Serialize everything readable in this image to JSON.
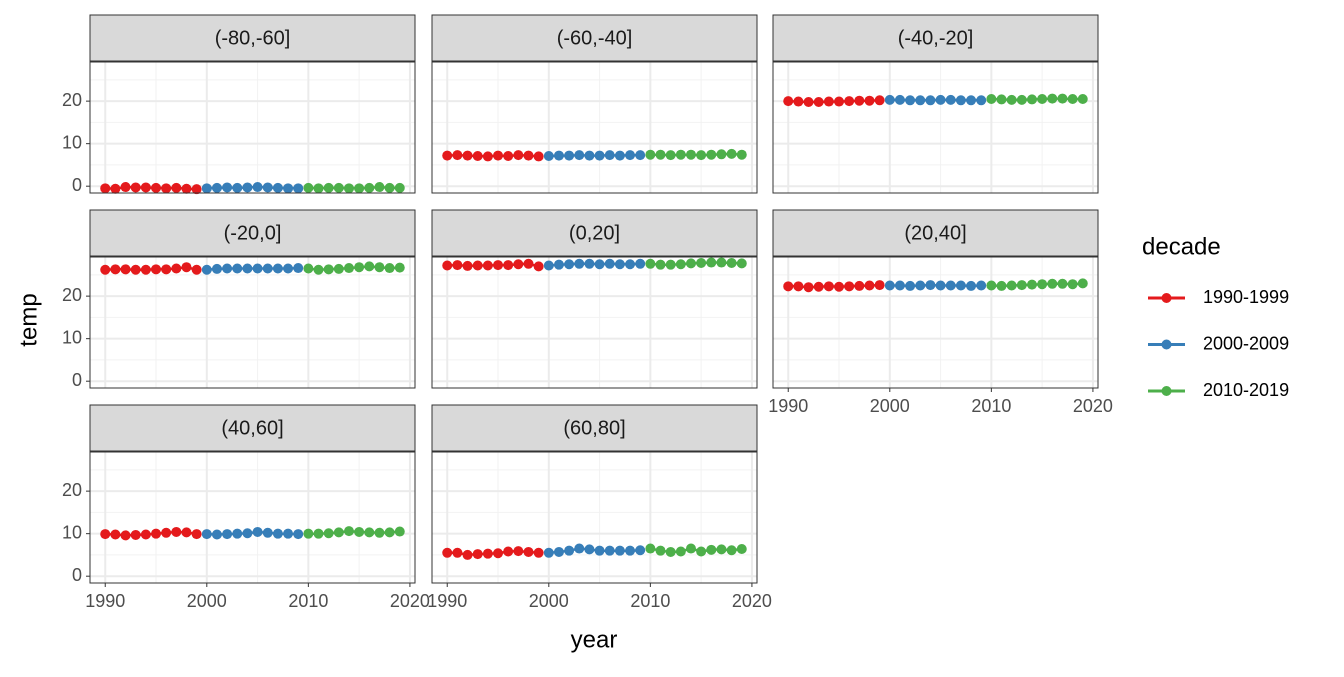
{
  "chart_data": {
    "type": "line",
    "x_label": "year",
    "y_label": "temp",
    "legend_title": "decade",
    "xlim": [
      1988.5,
      2020.5
    ],
    "ylim": [
      -1.6,
      29.2
    ],
    "xticks": [
      1990,
      2000,
      2010,
      2020
    ],
    "yticks": [
      0,
      10,
      20
    ],
    "x_minor_grid": [
      1995,
      2005,
      2015
    ],
    "y_minor_grid": [
      5,
      15,
      25
    ],
    "grid": true,
    "legend": "right",
    "series": [
      {
        "name": "1990-1999",
        "color": "#e41a1c",
        "x": [
          1990,
          1991,
          1992,
          1993,
          1994,
          1995,
          1996,
          1997,
          1998,
          1999
        ]
      },
      {
        "name": "2000-2009",
        "color": "#377eb8",
        "x": [
          2000,
          2001,
          2002,
          2003,
          2004,
          2005,
          2006,
          2007,
          2008,
          2009
        ]
      },
      {
        "name": "2010-2019",
        "color": "#4daf4a",
        "x": [
          2010,
          2011,
          2012,
          2013,
          2014,
          2015,
          2016,
          2017,
          2018,
          2019
        ]
      }
    ],
    "facets": [
      {
        "title": "(-80,-60]",
        "values": [
          [
            -0.5,
            -0.6,
            -0.2,
            -0.3,
            -0.3,
            -0.4,
            -0.5,
            -0.4,
            -0.6,
            -0.7
          ],
          [
            -0.5,
            -0.4,
            -0.3,
            -0.4,
            -0.3,
            -0.2,
            -0.3,
            -0.4,
            -0.5,
            -0.5
          ],
          [
            -0.4,
            -0.5,
            -0.4,
            -0.4,
            -0.5,
            -0.5,
            -0.4,
            -0.2,
            -0.4,
            -0.4
          ]
        ]
      },
      {
        "title": "(-60,-40]",
        "values": [
          [
            7.2,
            7.3,
            7.2,
            7.1,
            7.0,
            7.2,
            7.1,
            7.3,
            7.2,
            7.0
          ],
          [
            7.1,
            7.2,
            7.2,
            7.3,
            7.2,
            7.2,
            7.3,
            7.2,
            7.3,
            7.3
          ],
          [
            7.4,
            7.4,
            7.3,
            7.4,
            7.4,
            7.3,
            7.4,
            7.5,
            7.6,
            7.4
          ]
        ]
      },
      {
        "title": "(-40,-20]",
        "values": [
          [
            20.0,
            19.9,
            19.8,
            19.8,
            19.9,
            19.9,
            20.0,
            20.1,
            20.1,
            20.2
          ],
          [
            20.3,
            20.3,
            20.2,
            20.2,
            20.2,
            20.3,
            20.3,
            20.2,
            20.2,
            20.2
          ],
          [
            20.5,
            20.4,
            20.3,
            20.3,
            20.4,
            20.5,
            20.6,
            20.6,
            20.5,
            20.5
          ]
        ]
      },
      {
        "title": "(-20,0]",
        "values": [
          [
            26.2,
            26.3,
            26.3,
            26.2,
            26.2,
            26.3,
            26.3,
            26.5,
            26.8,
            26.2
          ],
          [
            26.2,
            26.4,
            26.5,
            26.5,
            26.5,
            26.5,
            26.5,
            26.5,
            26.5,
            26.6
          ],
          [
            26.5,
            26.2,
            26.3,
            26.4,
            26.6,
            26.8,
            27.0,
            26.8,
            26.6,
            26.7
          ]
        ]
      },
      {
        "title": "(0,20]",
        "values": [
          [
            27.2,
            27.3,
            27.1,
            27.2,
            27.2,
            27.3,
            27.3,
            27.5,
            27.6,
            27.0
          ],
          [
            27.2,
            27.4,
            27.5,
            27.6,
            27.6,
            27.5,
            27.6,
            27.5,
            27.5,
            27.6
          ],
          [
            27.6,
            27.4,
            27.4,
            27.5,
            27.7,
            27.8,
            27.9,
            27.9,
            27.8,
            27.7
          ]
        ]
      },
      {
        "title": "(20,40]",
        "values": [
          [
            22.3,
            22.3,
            22.1,
            22.2,
            22.3,
            22.2,
            22.3,
            22.4,
            22.5,
            22.6
          ],
          [
            22.5,
            22.5,
            22.4,
            22.5,
            22.6,
            22.5,
            22.5,
            22.5,
            22.4,
            22.5
          ],
          [
            22.5,
            22.4,
            22.5,
            22.6,
            22.7,
            22.8,
            22.9,
            22.9,
            22.8,
            23.0
          ]
        ]
      },
      {
        "title": "(40,60]",
        "values": [
          [
            9.9,
            9.8,
            9.6,
            9.7,
            9.8,
            10.0,
            10.2,
            10.4,
            10.3,
            9.9
          ],
          [
            9.9,
            9.8,
            9.9,
            10.0,
            10.1,
            10.4,
            10.2,
            10.0,
            10.0,
            9.9
          ],
          [
            10.0,
            10.0,
            10.1,
            10.3,
            10.6,
            10.4,
            10.3,
            10.2,
            10.3,
            10.5
          ]
        ]
      },
      {
        "title": "(60,80]",
        "values": [
          [
            5.5,
            5.5,
            5.0,
            5.2,
            5.3,
            5.4,
            5.8,
            5.9,
            5.7,
            5.5
          ],
          [
            5.5,
            5.7,
            6.0,
            6.5,
            6.3,
            6.0,
            6.0,
            6.0,
            6.0,
            6.1
          ],
          [
            6.5,
            6.0,
            5.7,
            5.8,
            6.5,
            5.8,
            6.2,
            6.3,
            6.1,
            6.4
          ]
        ]
      }
    ]
  }
}
